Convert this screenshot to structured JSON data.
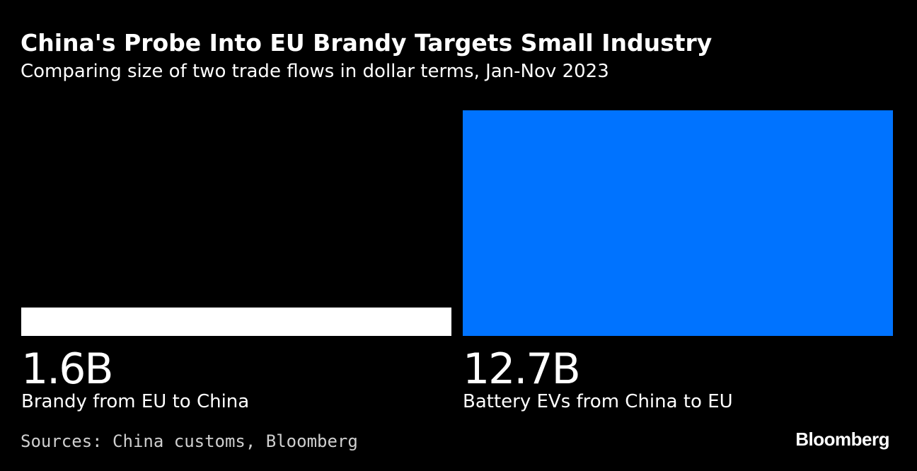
{
  "header": {
    "title": "China's Probe Into EU Brandy Targets Small Industry",
    "subtitle": "Comparing size of two trade flows in dollar terms, Jan-Nov 2023"
  },
  "chart_data": {
    "type": "bar",
    "title": "China's Probe Into EU Brandy Targets Small Industry",
    "subtitle": "Comparing size of two trade flows in dollar terms, Jan-Nov 2023",
    "unit": "USD billions",
    "categories": [
      "Brandy from EU to China",
      "Battery EVs from China to EU"
    ],
    "values": [
      1.6,
      12.7
    ],
    "value_labels": [
      "1.6B",
      "12.7B"
    ],
    "colors": [
      "#ffffff",
      "#0073ff"
    ],
    "ylim": [
      0,
      12.7
    ],
    "grid": false,
    "axes": false
  },
  "footer": {
    "source": "Sources: China customs, Bloomberg",
    "logo": "Bloomberg"
  },
  "colors": {
    "background": "#000000",
    "text": "#ffffff",
    "source_text": "#cfcfcf"
  }
}
